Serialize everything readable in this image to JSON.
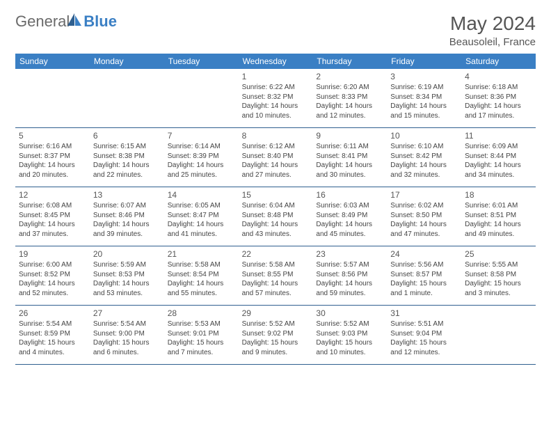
{
  "brand": {
    "part1": "General",
    "part2": "Blue"
  },
  "title": "May 2024",
  "location": "Beausoleil, France",
  "weekdays": [
    "Sunday",
    "Monday",
    "Tuesday",
    "Wednesday",
    "Thursday",
    "Friday",
    "Saturday"
  ],
  "colors": {
    "header_bg": "#3a7fc4",
    "header_text": "#ffffff",
    "divider": "#2f5f8f",
    "body_text": "#444444",
    "title_text": "#555555"
  },
  "weeks": [
    [
      {},
      {},
      {},
      {
        "day": "1",
        "sunrise": "Sunrise: 6:22 AM",
        "sunset": "Sunset: 8:32 PM",
        "dl1": "Daylight: 14 hours",
        "dl2": "and 10 minutes."
      },
      {
        "day": "2",
        "sunrise": "Sunrise: 6:20 AM",
        "sunset": "Sunset: 8:33 PM",
        "dl1": "Daylight: 14 hours",
        "dl2": "and 12 minutes."
      },
      {
        "day": "3",
        "sunrise": "Sunrise: 6:19 AM",
        "sunset": "Sunset: 8:34 PM",
        "dl1": "Daylight: 14 hours",
        "dl2": "and 15 minutes."
      },
      {
        "day": "4",
        "sunrise": "Sunrise: 6:18 AM",
        "sunset": "Sunset: 8:36 PM",
        "dl1": "Daylight: 14 hours",
        "dl2": "and 17 minutes."
      }
    ],
    [
      {
        "day": "5",
        "sunrise": "Sunrise: 6:16 AM",
        "sunset": "Sunset: 8:37 PM",
        "dl1": "Daylight: 14 hours",
        "dl2": "and 20 minutes."
      },
      {
        "day": "6",
        "sunrise": "Sunrise: 6:15 AM",
        "sunset": "Sunset: 8:38 PM",
        "dl1": "Daylight: 14 hours",
        "dl2": "and 22 minutes."
      },
      {
        "day": "7",
        "sunrise": "Sunrise: 6:14 AM",
        "sunset": "Sunset: 8:39 PM",
        "dl1": "Daylight: 14 hours",
        "dl2": "and 25 minutes."
      },
      {
        "day": "8",
        "sunrise": "Sunrise: 6:12 AM",
        "sunset": "Sunset: 8:40 PM",
        "dl1": "Daylight: 14 hours",
        "dl2": "and 27 minutes."
      },
      {
        "day": "9",
        "sunrise": "Sunrise: 6:11 AM",
        "sunset": "Sunset: 8:41 PM",
        "dl1": "Daylight: 14 hours",
        "dl2": "and 30 minutes."
      },
      {
        "day": "10",
        "sunrise": "Sunrise: 6:10 AM",
        "sunset": "Sunset: 8:42 PM",
        "dl1": "Daylight: 14 hours",
        "dl2": "and 32 minutes."
      },
      {
        "day": "11",
        "sunrise": "Sunrise: 6:09 AM",
        "sunset": "Sunset: 8:44 PM",
        "dl1": "Daylight: 14 hours",
        "dl2": "and 34 minutes."
      }
    ],
    [
      {
        "day": "12",
        "sunrise": "Sunrise: 6:08 AM",
        "sunset": "Sunset: 8:45 PM",
        "dl1": "Daylight: 14 hours",
        "dl2": "and 37 minutes."
      },
      {
        "day": "13",
        "sunrise": "Sunrise: 6:07 AM",
        "sunset": "Sunset: 8:46 PM",
        "dl1": "Daylight: 14 hours",
        "dl2": "and 39 minutes."
      },
      {
        "day": "14",
        "sunrise": "Sunrise: 6:05 AM",
        "sunset": "Sunset: 8:47 PM",
        "dl1": "Daylight: 14 hours",
        "dl2": "and 41 minutes."
      },
      {
        "day": "15",
        "sunrise": "Sunrise: 6:04 AM",
        "sunset": "Sunset: 8:48 PM",
        "dl1": "Daylight: 14 hours",
        "dl2": "and 43 minutes."
      },
      {
        "day": "16",
        "sunrise": "Sunrise: 6:03 AM",
        "sunset": "Sunset: 8:49 PM",
        "dl1": "Daylight: 14 hours",
        "dl2": "and 45 minutes."
      },
      {
        "day": "17",
        "sunrise": "Sunrise: 6:02 AM",
        "sunset": "Sunset: 8:50 PM",
        "dl1": "Daylight: 14 hours",
        "dl2": "and 47 minutes."
      },
      {
        "day": "18",
        "sunrise": "Sunrise: 6:01 AM",
        "sunset": "Sunset: 8:51 PM",
        "dl1": "Daylight: 14 hours",
        "dl2": "and 49 minutes."
      }
    ],
    [
      {
        "day": "19",
        "sunrise": "Sunrise: 6:00 AM",
        "sunset": "Sunset: 8:52 PM",
        "dl1": "Daylight: 14 hours",
        "dl2": "and 52 minutes."
      },
      {
        "day": "20",
        "sunrise": "Sunrise: 5:59 AM",
        "sunset": "Sunset: 8:53 PM",
        "dl1": "Daylight: 14 hours",
        "dl2": "and 53 minutes."
      },
      {
        "day": "21",
        "sunrise": "Sunrise: 5:58 AM",
        "sunset": "Sunset: 8:54 PM",
        "dl1": "Daylight: 14 hours",
        "dl2": "and 55 minutes."
      },
      {
        "day": "22",
        "sunrise": "Sunrise: 5:58 AM",
        "sunset": "Sunset: 8:55 PM",
        "dl1": "Daylight: 14 hours",
        "dl2": "and 57 minutes."
      },
      {
        "day": "23",
        "sunrise": "Sunrise: 5:57 AM",
        "sunset": "Sunset: 8:56 PM",
        "dl1": "Daylight: 14 hours",
        "dl2": "and 59 minutes."
      },
      {
        "day": "24",
        "sunrise": "Sunrise: 5:56 AM",
        "sunset": "Sunset: 8:57 PM",
        "dl1": "Daylight: 15 hours",
        "dl2": "and 1 minute."
      },
      {
        "day": "25",
        "sunrise": "Sunrise: 5:55 AM",
        "sunset": "Sunset: 8:58 PM",
        "dl1": "Daylight: 15 hours",
        "dl2": "and 3 minutes."
      }
    ],
    [
      {
        "day": "26",
        "sunrise": "Sunrise: 5:54 AM",
        "sunset": "Sunset: 8:59 PM",
        "dl1": "Daylight: 15 hours",
        "dl2": "and 4 minutes."
      },
      {
        "day": "27",
        "sunrise": "Sunrise: 5:54 AM",
        "sunset": "Sunset: 9:00 PM",
        "dl1": "Daylight: 15 hours",
        "dl2": "and 6 minutes."
      },
      {
        "day": "28",
        "sunrise": "Sunrise: 5:53 AM",
        "sunset": "Sunset: 9:01 PM",
        "dl1": "Daylight: 15 hours",
        "dl2": "and 7 minutes."
      },
      {
        "day": "29",
        "sunrise": "Sunrise: 5:52 AM",
        "sunset": "Sunset: 9:02 PM",
        "dl1": "Daylight: 15 hours",
        "dl2": "and 9 minutes."
      },
      {
        "day": "30",
        "sunrise": "Sunrise: 5:52 AM",
        "sunset": "Sunset: 9:03 PM",
        "dl1": "Daylight: 15 hours",
        "dl2": "and 10 minutes."
      },
      {
        "day": "31",
        "sunrise": "Sunrise: 5:51 AM",
        "sunset": "Sunset: 9:04 PM",
        "dl1": "Daylight: 15 hours",
        "dl2": "and 12 minutes."
      },
      {}
    ]
  ]
}
